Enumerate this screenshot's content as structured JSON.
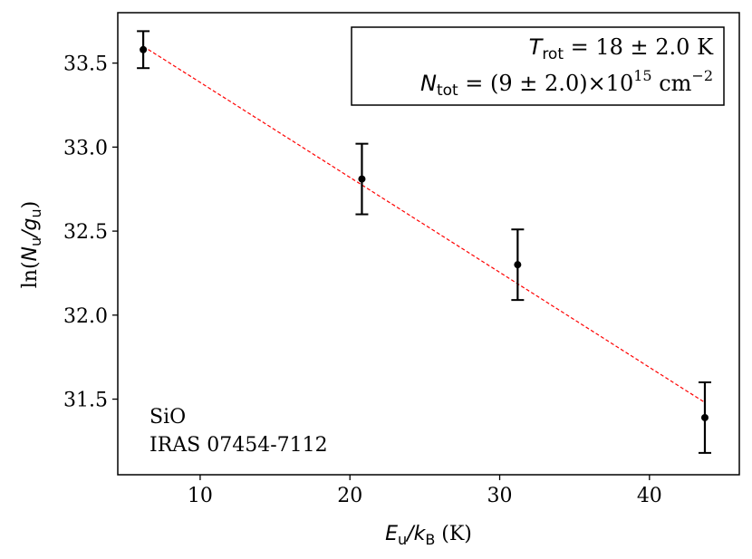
{
  "chart_data": {
    "type": "scatter",
    "x": [
      6.2,
      20.8,
      31.2,
      43.7
    ],
    "y": [
      33.58,
      32.81,
      32.3,
      31.39
    ],
    "yerr": [
      0.11,
      0.21,
      0.21,
      0.21
    ],
    "fit_line": {
      "x": [
        6.2,
        43.7
      ],
      "y": [
        33.6,
        31.48
      ],
      "color": "#ff0000",
      "style": "dashed"
    },
    "xlim": [
      4.5,
      46.0
    ],
    "ylim": [
      31.05,
      33.8
    ],
    "xticks": [
      10,
      20,
      30,
      40
    ],
    "xtick_labels": [
      "10",
      "20",
      "30",
      "40"
    ],
    "yticks": [
      31.5,
      32.0,
      32.5,
      33.0,
      33.5
    ],
    "ytick_labels": [
      "31.5",
      "32.0",
      "32.5",
      "33.0",
      "33.5"
    ],
    "xlabel": {
      "main": "E",
      "sub1": "u",
      "slash": "/",
      "k": "k",
      "sub2": "B",
      "unit": " (K)"
    },
    "ylabel": {
      "prefix": "ln(",
      "n": "N",
      "sub1": "u",
      "slash": "/",
      "g": "g",
      "sub2": "u",
      "suffix": ")"
    },
    "legend": {
      "line1": {
        "sym": "T",
        "sub": "rot",
        "text": " = 18 ± 2.0 K"
      },
      "line2": {
        "sym": "N",
        "sub": "tot",
        "text": " = (9 ± 2.0)×10",
        "exp": "15",
        "unit": " cm",
        "unit_exp": "−2"
      }
    },
    "annotations": [
      "SiO",
      "IRAS 07454-7112"
    ],
    "marker_color": "#000000",
    "grid": false,
    "legend_placement": "top-right"
  }
}
